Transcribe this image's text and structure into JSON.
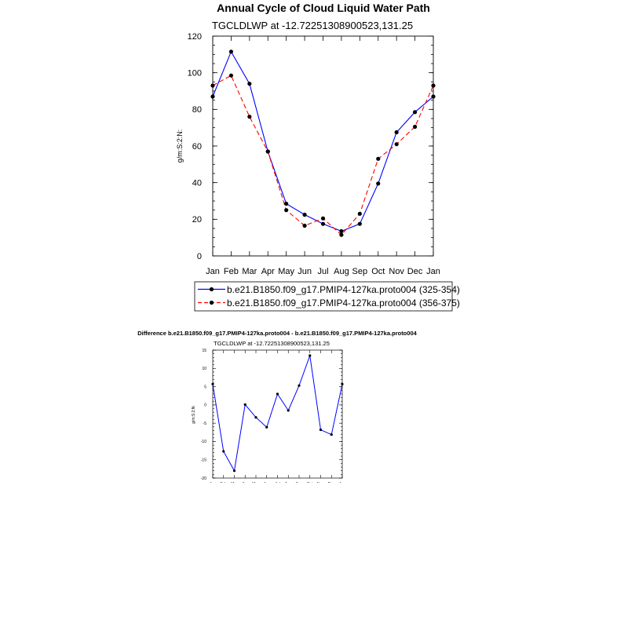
{
  "title": "Annual Cycle of Cloud Liquid Water Path",
  "chart_data": [
    {
      "type": "line",
      "subtitle": "TGCLDLWP at -12.72251308900523,131.25",
      "ylabel": "g/m:S:2:N:",
      "xlabel": "",
      "categories": [
        "Jan",
        "Feb",
        "Mar",
        "Apr",
        "May",
        "Jun",
        "Jul",
        "Aug",
        "Sep",
        "Oct",
        "Nov",
        "Dec",
        "Jan"
      ],
      "ylim": [
        0,
        120
      ],
      "yticks": [
        0,
        20,
        40,
        60,
        80,
        100,
        120
      ],
      "grid": false,
      "legend_position": "bottom",
      "series": [
        {
          "name": "b.e21.B1850.f09_g17.PMIP4-127ka.proto004 (325-354)",
          "color": "#0000ff",
          "dash": "solid",
          "values": [
            87,
            111.5,
            94,
            57,
            28.5,
            22.5,
            17.5,
            13.5,
            17.5,
            39.5,
            67.5,
            78.5,
            87
          ]
        },
        {
          "name": "b.e21.B1850.f09_g17.PMIP4-127ka.proto004 (356-375)",
          "color": "#ff0000",
          "dash": "dashed",
          "values": [
            93,
            98.5,
            76,
            57,
            25,
            16.5,
            20.5,
            11.5,
            23,
            53,
            61,
            70.5,
            93
          ]
        }
      ]
    },
    {
      "type": "line",
      "title": "Difference b.e21.B1850.f09_g17.PMIP4-127ka.proto004 - b.e21.B1850.f09_g17.PMIP4-127ka.proto004",
      "subtitle": "TGCLDLWP at -12.72251308900523,131.25",
      "ylabel": "g/m:S:2:N:",
      "xlabel": "",
      "categories": [
        "Jan",
        "Feb",
        "Mar",
        "Apr",
        "May",
        "Jun",
        "Jul",
        "Aug",
        "Sep",
        "Oct",
        "Nov",
        "Dec",
        "Jan"
      ],
      "ylim": [
        -20,
        15
      ],
      "yticks": [
        -20,
        -15,
        -10,
        -5,
        0,
        5,
        10,
        15
      ],
      "grid": false,
      "series": [
        {
          "color": "#0000ff",
          "dash": "solid",
          "values": [
            5.7,
            -12.7,
            -18,
            0.1,
            -3.4,
            -6.1,
            3,
            -1.5,
            5.3,
            13.5,
            -6.8,
            -8.1,
            5.7
          ]
        }
      ]
    }
  ]
}
